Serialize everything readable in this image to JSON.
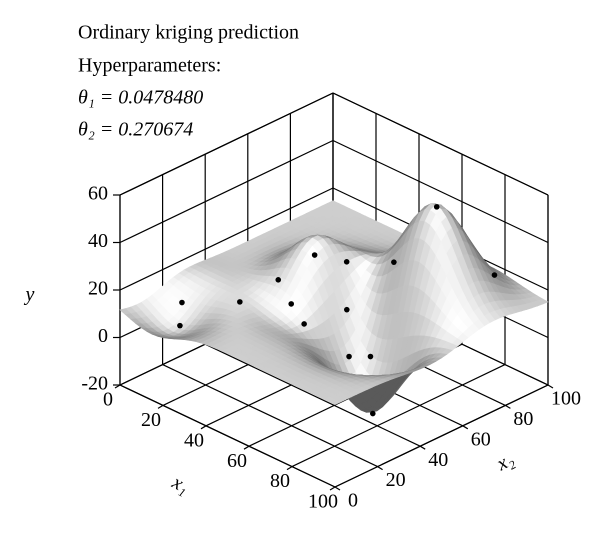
{
  "chart_data": {
    "type": "surface3d",
    "title_lines": [
      "Ordinary kriging prediction",
      "Hyperparameters:",
      "θ₁ = 0.0478480",
      "θ₂ = 0.270674"
    ],
    "x1_label": "x₁",
    "x2_label": "x₂",
    "y_label": "y",
    "x1lim": [
      0,
      100
    ],
    "x1ticks": [
      0,
      20,
      40,
      60,
      80,
      100
    ],
    "x2lim": [
      0,
      100
    ],
    "x2ticks": [
      0,
      20,
      40,
      60,
      80,
      100
    ],
    "ylim": [
      -20,
      60
    ],
    "yticks": [
      -20,
      0,
      20,
      40,
      60
    ],
    "grid": true,
    "color": "#000000",
    "samples": {
      "x1": [
        9,
        14,
        28,
        32,
        41,
        48,
        40,
        45,
        51,
        62,
        74,
        57,
        62,
        73,
        86
      ],
      "x2": [
        20,
        14,
        28,
        42,
        39,
        38,
        51,
        61,
        55,
        66,
        74,
        50,
        55,
        45,
        89
      ],
      "y": [
        10,
        5,
        15,
        20,
        15,
        10,
        30,
        25,
        10,
        30,
        55,
        -5,
        -5,
        -20,
        25
      ]
    }
  }
}
